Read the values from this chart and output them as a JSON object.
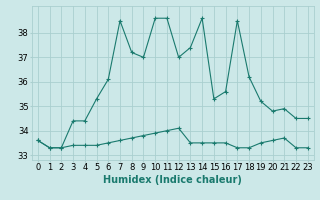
{
  "xlabel": "Humidex (Indice chaleur)",
  "x": [
    0,
    1,
    2,
    3,
    4,
    5,
    6,
    7,
    8,
    9,
    10,
    11,
    12,
    13,
    14,
    15,
    16,
    17,
    18,
    19,
    20,
    21,
    22,
    23
  ],
  "line1": [
    33.6,
    33.3,
    33.3,
    34.4,
    34.4,
    35.3,
    36.1,
    38.5,
    37.2,
    37.0,
    38.6,
    38.6,
    37.0,
    37.4,
    38.6,
    35.3,
    35.6,
    38.5,
    36.2,
    35.2,
    34.8,
    34.9,
    34.5,
    34.5
  ],
  "line2": [
    33.6,
    33.3,
    33.3,
    33.4,
    33.4,
    33.4,
    33.5,
    33.6,
    33.7,
    33.8,
    33.9,
    34.0,
    34.1,
    33.5,
    33.5,
    33.5,
    33.5,
    33.3,
    33.3,
    33.5,
    33.6,
    33.7,
    33.3,
    33.3
  ],
  "line_color": "#1a7a6e",
  "bg_color": "#cce8e8",
  "grid_color": "#aacfcf",
  "ylim": [
    32.8,
    39.1
  ],
  "yticks": [
    33,
    34,
    35,
    36,
    37,
    38
  ],
  "label_fontsize": 7,
  "tick_fontsize": 6
}
